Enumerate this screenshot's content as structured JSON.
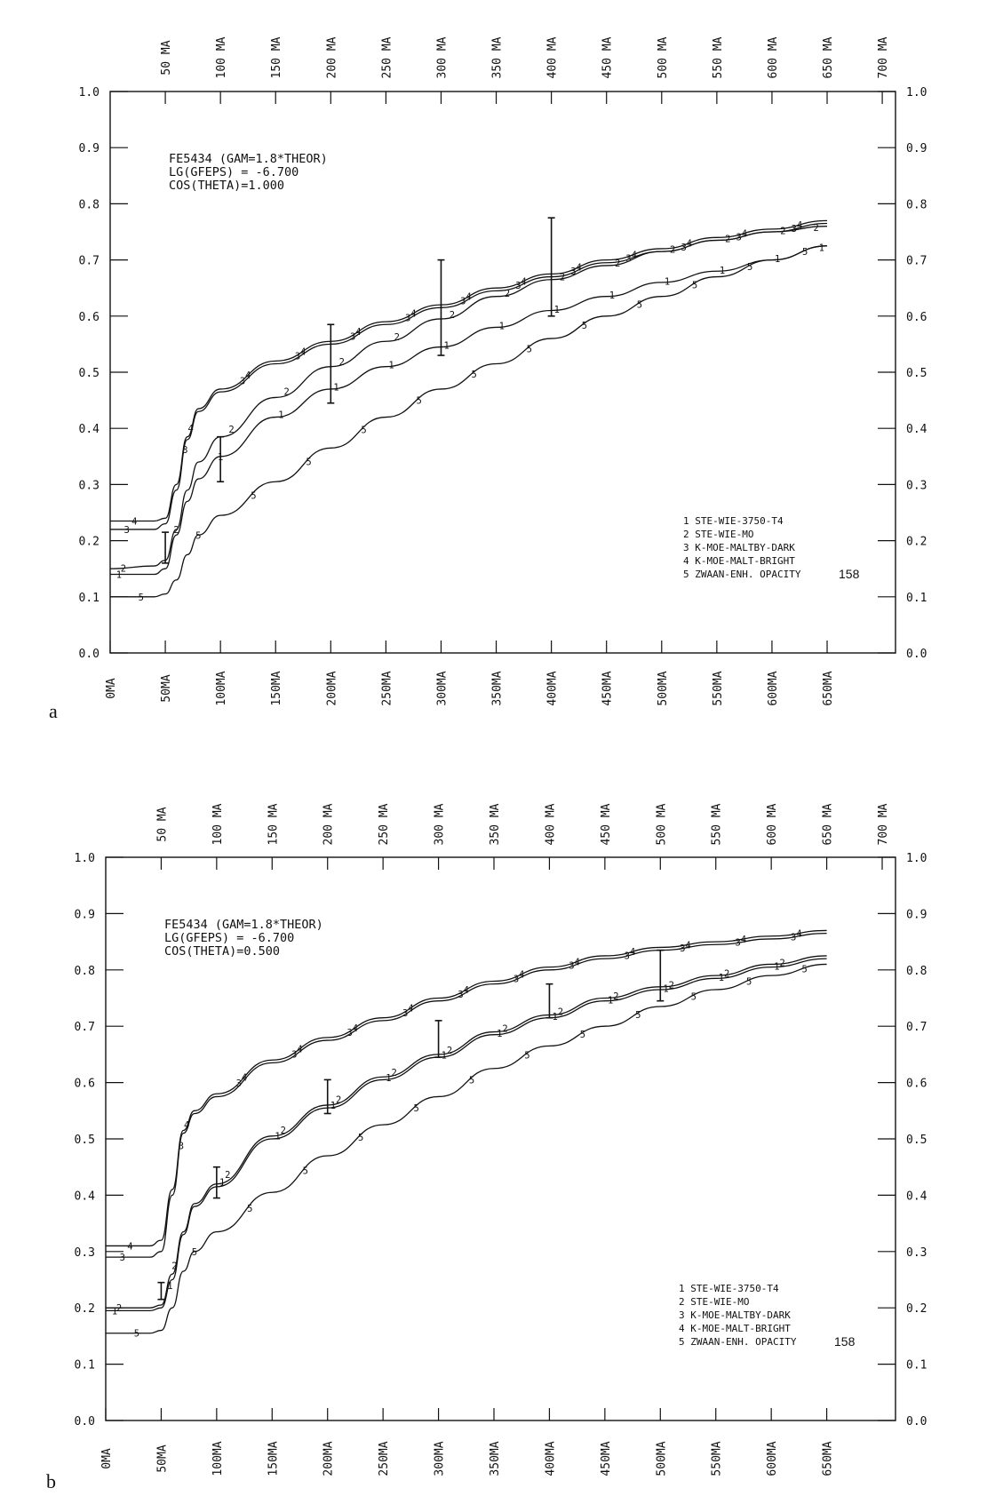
{
  "figure": {
    "colors": {
      "ink": "#111111",
      "background": "#ffffff"
    },
    "chart_data": [
      {
        "panel_letter": "a",
        "type": "line",
        "info_lines": [
          "FE5434  (GAM=1.8*THEOR)",
          "LG(GFEPS) =  -6.700",
          "COS(THETA)=1.000"
        ],
        "bottom_tick_labels": [
          "0MA",
          "50MA",
          "100MA",
          "150MA",
          "200MA",
          "250MA",
          "300MA",
          "350MA",
          "400MA",
          "450MA",
          "500MA",
          "550MA",
          "600MA",
          "650MA"
        ],
        "top_tick_labels": [
          "50 MA",
          "100 MA",
          "150 MA",
          "200 MA",
          "250 MA",
          "300 MA",
          "350 MA",
          "400 MA",
          "450 MA",
          "500 MA",
          "550 MA",
          "600 MA",
          "650 MA",
          "700 MA"
        ],
        "y_tick_labels": [
          "0.0",
          "0.1",
          "0.2",
          "0.3",
          "0.4",
          "0.5",
          "0.6",
          "0.7",
          "0.8",
          "0.9",
          "1.0"
        ],
        "xlim_bottom": [
          0,
          650
        ],
        "xlim_top": [
          50,
          700
        ],
        "ylim": [
          0,
          1.0
        ],
        "legend": [
          "1  STE-WIE-3750-T4",
          "2  STE-WIE-MO",
          "3  K-MOE-MALTBY-DARK",
          "4  K-MOE-MALT-BRIGHT",
          "5  ZWAAN-ENH. OPACITY"
        ],
        "page_number": "158",
        "series": [
          {
            "marker": "1",
            "x": [
              0,
              40,
              50,
              60,
              70,
              80,
              100,
              150,
              200,
              250,
              300,
              350,
              400,
              450,
              500,
              550,
              600,
              650
            ],
            "y": [
              0.14,
              0.14,
              0.15,
              0.21,
              0.27,
              0.31,
              0.35,
              0.42,
              0.47,
              0.51,
              0.545,
              0.58,
              0.61,
              0.635,
              0.66,
              0.68,
              0.7,
              0.725
            ],
            "markers_at": [
              8,
              100,
              155,
              205,
              255,
              305,
              355,
              405,
              455,
              505,
              555,
              605,
              645
            ]
          },
          {
            "marker": "2",
            "x": [
              0,
              40,
              50,
              60,
              70,
              80,
              100,
              150,
              200,
              250,
              300,
              350,
              400,
              450,
              500,
              550,
              600,
              650
            ],
            "y": [
              0.15,
              0.155,
              0.165,
              0.22,
              0.29,
              0.34,
              0.385,
              0.455,
              0.51,
              0.555,
              0.595,
              0.635,
              0.665,
              0.69,
              0.715,
              0.735,
              0.75,
              0.76
            ],
            "markers_at": [
              12,
              60,
              110,
              160,
              210,
              260,
              310,
              360,
              410,
              460,
              510,
              560,
              610,
              640
            ]
          },
          {
            "marker": "3",
            "x": [
              0,
              40,
              50,
              60,
              70,
              80,
              100,
              150,
              200,
              250,
              300,
              350,
              400,
              450,
              500,
              550,
              600,
              650
            ],
            "y": [
              0.22,
              0.22,
              0.23,
              0.29,
              0.38,
              0.43,
              0.465,
              0.515,
              0.55,
              0.585,
              0.615,
              0.645,
              0.67,
              0.695,
              0.715,
              0.735,
              0.75,
              0.765
            ],
            "markers_at": [
              15,
              68,
              120,
              170,
              220,
              270,
              320,
              370,
              420,
              470,
              520,
              570,
              620
            ]
          },
          {
            "marker": "4",
            "x": [
              0,
              40,
              50,
              60,
              70,
              80,
              100,
              150,
              200,
              250,
              300,
              350,
              400,
              450,
              500,
              550,
              600,
              650
            ],
            "y": [
              0.235,
              0.235,
              0.24,
              0.3,
              0.385,
              0.435,
              0.47,
              0.52,
              0.555,
              0.59,
              0.62,
              0.65,
              0.675,
              0.7,
              0.72,
              0.74,
              0.755,
              0.77
            ],
            "markers_at": [
              22,
              73,
              125,
              175,
              225,
              275,
              325,
              375,
              425,
              475,
              525,
              575,
              625
            ]
          },
          {
            "marker": "5",
            "x": [
              0,
              40,
              50,
              60,
              70,
              80,
              100,
              150,
              200,
              250,
              300,
              350,
              400,
              450,
              500,
              550,
              600,
              650
            ],
            "y": [
              0.1,
              0.1,
              0.105,
              0.13,
              0.175,
              0.21,
              0.245,
              0.305,
              0.365,
              0.42,
              0.47,
              0.515,
              0.56,
              0.6,
              0.635,
              0.67,
              0.7,
              0.725
            ],
            "markers_at": [
              28,
              80,
              130,
              180,
              230,
              280,
              330,
              380,
              430,
              480,
              530,
              580,
              630
            ]
          }
        ],
        "error_bars": [
          {
            "x": 50,
            "low": 0.16,
            "high": 0.215
          },
          {
            "x": 100,
            "low": 0.305,
            "high": 0.385
          },
          {
            "x": 200,
            "low": 0.445,
            "high": 0.585
          },
          {
            "x": 300,
            "low": 0.53,
            "high": 0.7
          },
          {
            "x": 400,
            "low": 0.6,
            "high": 0.775
          }
        ]
      },
      {
        "panel_letter": "b",
        "type": "line",
        "info_lines": [
          "FE5434  (GAM=1.8*THEOR)",
          "LG(GFEPS) =  -6.700",
          "COS(THETA)=0.500"
        ],
        "bottom_tick_labels": [
          "0MA",
          "50MA",
          "100MA",
          "150MA",
          "200MA",
          "250MA",
          "300MA",
          "350MA",
          "400MA",
          "450MA",
          "500MA",
          "550MA",
          "600MA",
          "650MA"
        ],
        "top_tick_labels": [
          "50 MA",
          "100 MA",
          "150 MA",
          "200 MA",
          "250 MA",
          "300 MA",
          "350 MA",
          "400 MA",
          "450 MA",
          "500 MA",
          "550 MA",
          "600 MA",
          "650 MA",
          "700 MA"
        ],
        "y_tick_labels": [
          "0.0",
          "0.1",
          "0.2",
          "0.3",
          "0.4",
          "0.5",
          "0.6",
          "0.7",
          "0.8",
          "0.9",
          "1.0"
        ],
        "xlim_bottom": [
          0,
          650
        ],
        "xlim_top": [
          50,
          700
        ],
        "ylim": [
          0,
          1.0
        ],
        "legend": [
          "1  STE-WIE-3750-T4",
          "2  STE-WIE-MO",
          "3  K-MOE-MALTBY-DARK",
          "4  K-MOE-MALT-BRIGHT",
          "5  ZWAAN-ENH. OPACITY"
        ],
        "page_number": "158",
        "series": [
          {
            "marker": "1",
            "x": [
              0,
              40,
              50,
              60,
              70,
              80,
              100,
              150,
              200,
              250,
              300,
              350,
              400,
              450,
              500,
              550,
              600,
              650
            ],
            "y": [
              0.195,
              0.195,
              0.2,
              0.25,
              0.33,
              0.38,
              0.415,
              0.5,
              0.555,
              0.605,
              0.645,
              0.685,
              0.715,
              0.745,
              0.765,
              0.785,
              0.805,
              0.82
            ],
            "markers_at": [
              8,
              58,
              105,
              155,
              205,
              255,
              305,
              355,
              405,
              455,
              505,
              555,
              605
            ]
          },
          {
            "marker": "2",
            "x": [
              0,
              40,
              50,
              60,
              70,
              80,
              100,
              150,
              200,
              250,
              300,
              350,
              400,
              450,
              500,
              550,
              600,
              650
            ],
            "y": [
              0.2,
              0.2,
              0.205,
              0.26,
              0.335,
              0.385,
              0.42,
              0.505,
              0.56,
              0.61,
              0.65,
              0.69,
              0.72,
              0.75,
              0.77,
              0.79,
              0.81,
              0.825
            ],
            "markers_at": [
              12,
              62,
              110,
              160,
              210,
              260,
              310,
              360,
              410,
              460,
              510,
              560,
              610
            ]
          },
          {
            "marker": "3",
            "x": [
              0,
              40,
              50,
              60,
              70,
              80,
              100,
              150,
              200,
              250,
              300,
              350,
              400,
              450,
              500,
              550,
              600,
              650
            ],
            "y": [
              0.29,
              0.29,
              0.3,
              0.4,
              0.51,
              0.545,
              0.575,
              0.635,
              0.675,
              0.71,
              0.745,
              0.775,
              0.8,
              0.82,
              0.835,
              0.845,
              0.855,
              0.865
            ],
            "markers_at": [
              15,
              68,
              120,
              170,
              220,
              270,
              320,
              370,
              420,
              470,
              520,
              570,
              620
            ]
          },
          {
            "marker": "4",
            "x": [
              0,
              40,
              50,
              60,
              70,
              80,
              100,
              150,
              200,
              250,
              300,
              350,
              400,
              450,
              500,
              550,
              600,
              650
            ],
            "y": [
              0.31,
              0.31,
              0.32,
              0.41,
              0.515,
              0.55,
              0.58,
              0.64,
              0.68,
              0.715,
              0.75,
              0.78,
              0.805,
              0.825,
              0.84,
              0.85,
              0.86,
              0.87
            ],
            "markers_at": [
              22,
              73,
              125,
              175,
              225,
              275,
              325,
              375,
              425,
              475,
              525,
              575,
              625
            ]
          },
          {
            "marker": "5",
            "x": [
              0,
              40,
              50,
              60,
              70,
              80,
              100,
              150,
              200,
              250,
              300,
              350,
              400,
              450,
              500,
              550,
              600,
              650
            ],
            "y": [
              0.155,
              0.155,
              0.16,
              0.2,
              0.265,
              0.3,
              0.335,
              0.405,
              0.47,
              0.525,
              0.575,
              0.625,
              0.665,
              0.7,
              0.735,
              0.765,
              0.79,
              0.81
            ],
            "markers_at": [
              28,
              80,
              130,
              180,
              230,
              280,
              330,
              380,
              430,
              480,
              530,
              580,
              630
            ]
          }
        ],
        "error_bars": [
          {
            "x": 50,
            "low": 0.215,
            "high": 0.245
          },
          {
            "x": 100,
            "low": 0.395,
            "high": 0.45
          },
          {
            "x": 200,
            "low": 0.545,
            "high": 0.605
          },
          {
            "x": 300,
            "low": 0.645,
            "high": 0.71
          },
          {
            "x": 400,
            "low": 0.715,
            "high": 0.775
          },
          {
            "x": 500,
            "low": 0.745,
            "high": 0.835
          }
        ]
      }
    ]
  }
}
